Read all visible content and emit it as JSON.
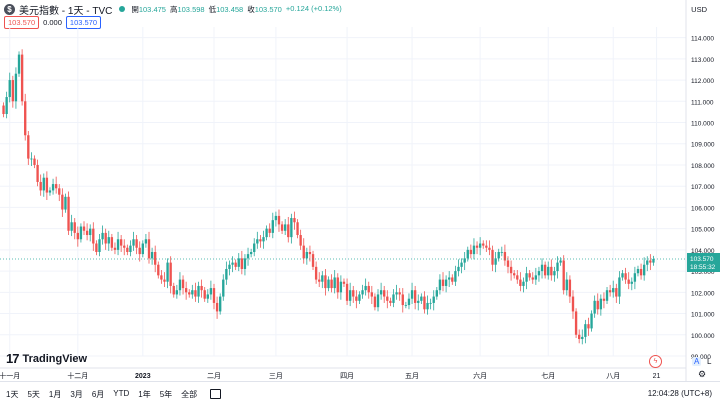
{
  "header": {
    "symbol_icon": "dollar-sign-icon",
    "symbol_glyph": "$",
    "title": "美元指數 - 1天 - TVC",
    "ohlc": [
      {
        "label": "開",
        "value": "103.475"
      },
      {
        "label": "高",
        "value": "103.598"
      },
      {
        "label": "低",
        "value": "103.458"
      },
      {
        "label": "收",
        "value": "103.570"
      }
    ],
    "change": "+0.124 (+0.12%)",
    "sell_price": "103.570",
    "spread": "0.000",
    "buy_price": "103.570",
    "currency": "USD"
  },
  "bottom_bar": {
    "timeframes": [
      "1天",
      "5天",
      "1月",
      "3月",
      "6月",
      "YTD",
      "1年",
      "5年",
      "全部"
    ],
    "clock": "12:04:28 (UTC+8)"
  },
  "side_buttons": {
    "auto": "A",
    "log": "L",
    "gear_icon": "gear-icon",
    "gear_glyph": "⚙"
  },
  "logo_text": "TradingView",
  "last_price_label": {
    "price": "103.570",
    "countdown": "18:55:32"
  },
  "colors": {
    "up": "#26a69a",
    "down": "#ef5350",
    "grid": "#f0f3fa",
    "last_line": "#26a69a"
  },
  "chart_data": {
    "type": "candlestick",
    "title": "美元指數 - 1天 - TVC",
    "ylim": [
      99.0,
      114.5
    ],
    "y_ticks": [
      99.0,
      100.0,
      101.0,
      102.0,
      103.0,
      104.0,
      105.0,
      106.0,
      107.0,
      108.0,
      109.0,
      110.0,
      111.0,
      112.0,
      113.0,
      114.0
    ],
    "y_tick_labels": [
      "99.000",
      "100.000",
      "101.000",
      "102.000",
      "103.000",
      "104.000",
      "105.000",
      "106.000",
      "107.000",
      "108.000",
      "109.000",
      "110.000",
      "111.000",
      "112.000",
      "113.000",
      "114.000"
    ],
    "x_labels": [
      {
        "label": "十一月",
        "index": 2
      },
      {
        "label": "十二月",
        "index": 24
      },
      {
        "label": "2023",
        "index": 45
      },
      {
        "label": "二月",
        "index": 68
      },
      {
        "label": "三月",
        "index": 88
      },
      {
        "label": "四月",
        "index": 111
      },
      {
        "label": "五月",
        "index": 132
      },
      {
        "label": "六月",
        "index": 154
      },
      {
        "label": "七月",
        "index": 176
      },
      {
        "label": "八月",
        "index": 197
      },
      {
        "label": "21",
        "index": 211
      }
    ],
    "last_price": 103.57,
    "closes": [
      110.4,
      111.2,
      112.0,
      111.0,
      112.3,
      113.2,
      111.0,
      109.4,
      108.3,
      108.3,
      108.0,
      107.2,
      106.8,
      107.4,
      106.7,
      106.8,
      107.1,
      106.9,
      106.6,
      105.9,
      106.5,
      104.9,
      105.3,
      104.8,
      104.5,
      105.1,
      104.9,
      104.7,
      105.0,
      104.3,
      103.9,
      104.5,
      104.8,
      104.3,
      104.6,
      104.1,
      104.0,
      104.5,
      104.2,
      104.1,
      103.9,
      104.2,
      104.5,
      104.1,
      103.8,
      104.3,
      104.5,
      103.6,
      103.9,
      103.3,
      102.8,
      102.6,
      102.5,
      103.4,
      102.3,
      101.9,
      102.1,
      102.6,
      102.2,
      102.0,
      101.9,
      102.1,
      101.8,
      102.3,
      102.1,
      101.7,
      101.9,
      102.2,
      101.5,
      101.1,
      101.8,
      102.6,
      103.1,
      103.3,
      103.4,
      103.2,
      103.6,
      103.1,
      103.6,
      103.8,
      103.9,
      104.3,
      104.5,
      104.4,
      104.6,
      105.0,
      104.8,
      105.4,
      105.6,
      105.2,
      104.9,
      105.2,
      104.6,
      105.5,
      105.3,
      104.7,
      104.2,
      103.6,
      103.9,
      103.8,
      103.2,
      102.6,
      102.5,
      102.8,
      102.2,
      102.6,
      102.2,
      102.7,
      102.0,
      102.5,
      102.4,
      101.6,
      102.1,
      101.8,
      101.6,
      101.9,
      102.1,
      102.3,
      102.0,
      101.8,
      101.3,
      101.9,
      102.1,
      101.8,
      101.6,
      101.5,
      101.9,
      102.0,
      101.9,
      101.4,
      101.4,
      101.7,
      102.1,
      101.5,
      101.6,
      101.8,
      101.2,
      101.5,
      101.5,
      101.8,
      102.1,
      102.6,
      102.3,
      102.6,
      102.7,
      102.5,
      103.0,
      103.2,
      103.4,
      103.6,
      104.0,
      103.8,
      104.2,
      104.1,
      104.3,
      104.2,
      104.1,
      104.0,
      103.3,
      103.6,
      103.9,
      103.9,
      103.5,
      103.2,
      102.9,
      102.8,
      102.6,
      102.3,
      102.5,
      102.9,
      102.7,
      102.6,
      102.8,
      103.0,
      103.3,
      102.8,
      103.2,
      102.8,
      103.0,
      103.4,
      103.5,
      102.1,
      102.6,
      101.8,
      101.1,
      100.0,
      99.8,
      99.9,
      100.5,
      100.3,
      101.0,
      101.6,
      101.2,
      101.7,
      101.6,
      102.1,
      102.0,
      102.2,
      101.8,
      102.7,
      102.9,
      102.6,
      102.4,
      102.5,
      102.9,
      103.1,
      102.8,
      103.3,
      103.5,
      103.4,
      103.57
    ]
  }
}
